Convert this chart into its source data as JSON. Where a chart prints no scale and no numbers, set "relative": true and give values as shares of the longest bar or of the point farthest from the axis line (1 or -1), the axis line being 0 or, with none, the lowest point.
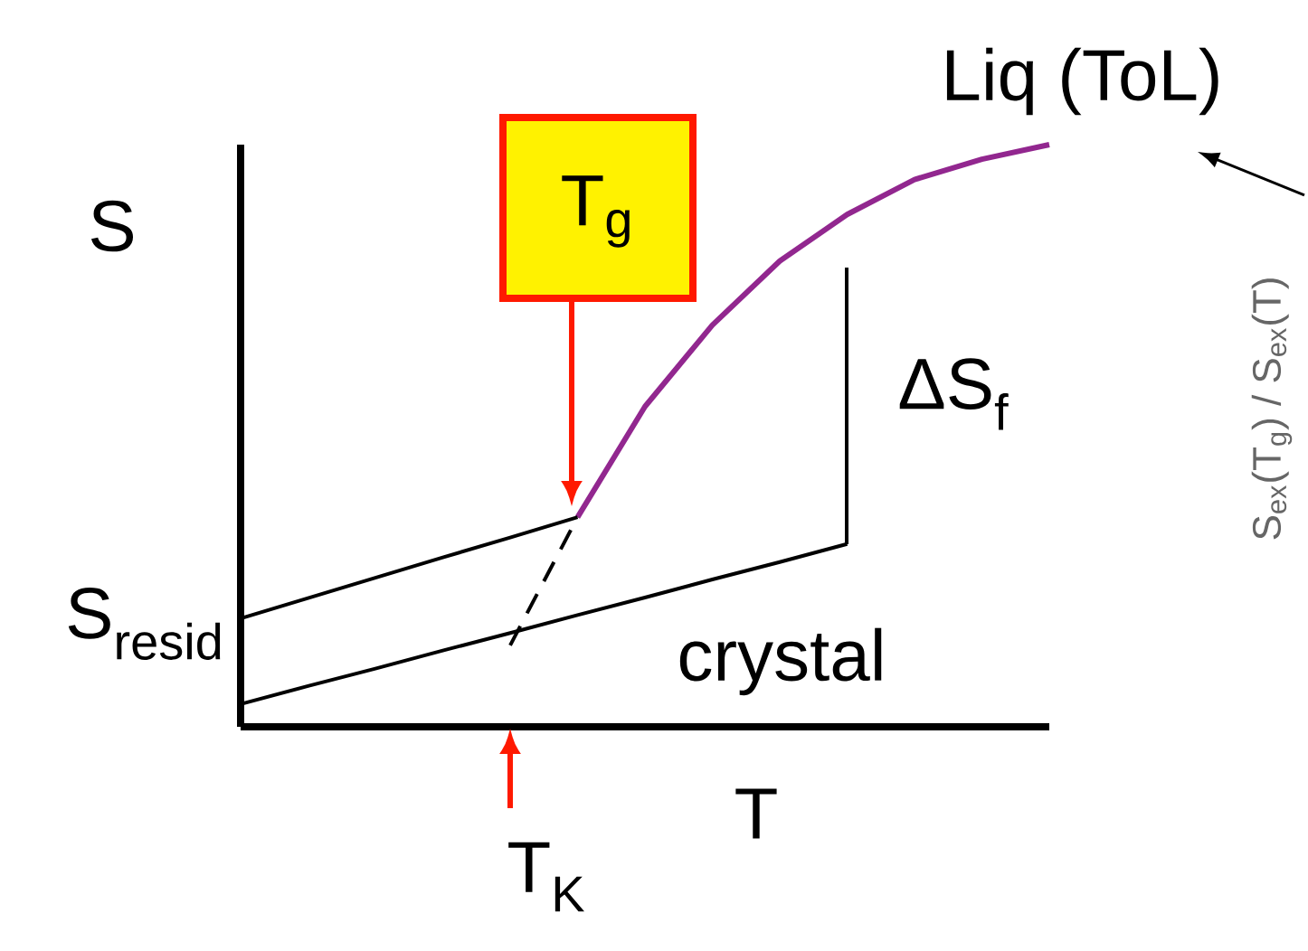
{
  "chart_data": {
    "type": "line",
    "relative": true,
    "title": "Liq (ToL)",
    "xlabel": "T",
    "ylabel": "S",
    "categories": [
      null,
      null,
      null,
      null,
      null,
      null,
      null,
      null,
      null,
      null,
      null,
      null,
      null
    ],
    "annotations": [
      "T$_{g}$",
      "T$_{K}$",
      "ΔS$_{f}$",
      "S$_{resid}$",
      "crystal",
      "S$_{ex}$(T$_{g}$) / S$_{ex}$(T)"
    ],
    "series": [
      {
        "color": "#92278f",
        "line_style": "solid",
        "values": [
          null,
          null,
          null,
          null,
          null,
          0.36,
          0.55,
          0.69,
          0.8,
          0.88,
          0.94,
          0.975,
          1.0
        ]
      },
      {
        "color": "#000000",
        "line_style": "dashed",
        "values": [
          null,
          null,
          null,
          null,
          0.14,
          0.36,
          null,
          null,
          null,
          null,
          null,
          null,
          null
        ]
      },
      {
        "color": "#000000",
        "line_style": "solid",
        "values": [
          0.039,
          0.07,
          0.1,
          0.131,
          0.161,
          0.192,
          0.222,
          0.253,
          0.283,
          0.314,
          null,
          null,
          null
        ]
      },
      {
        "color": "#000000",
        "line_style": "solid",
        "values": [
          0.186,
          0.221,
          0.256,
          0.291,
          0.325,
          0.36,
          null,
          null,
          null,
          null,
          null,
          null,
          null
        ]
      }
    ]
  }
}
